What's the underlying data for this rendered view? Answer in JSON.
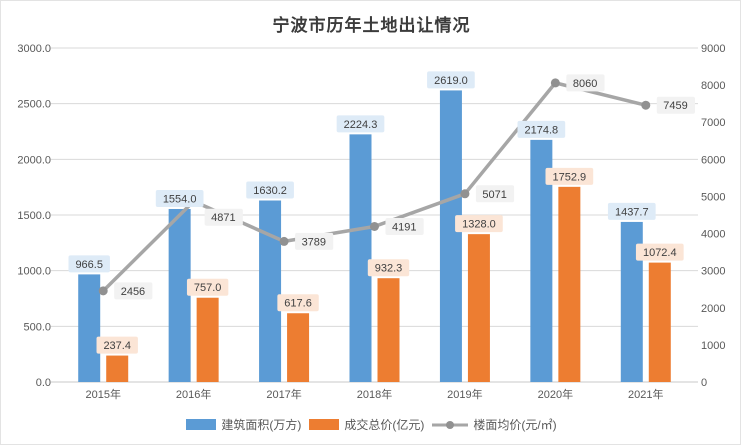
{
  "title": "宁波市历年土地出让情况",
  "colors": {
    "bar_blue": "#5B9BD5",
    "bar_orange": "#ED7D31",
    "line_gray": "#A6A6A6",
    "marker_gray": "#919191",
    "gridline": "#DADADA",
    "axis_line": "#C9C9C9",
    "tick_text": "#595959",
    "label_text": "#404040",
    "label_bg_blue": "#DEEBF7",
    "label_bg_orange": "#FBE5D6",
    "label_bg_gray": "#F2F2F2"
  },
  "chart_data": {
    "type": "bar",
    "subtype": "combo-bar-line-dual-axis",
    "title": "宁波市历年土地出让情况",
    "categories": [
      "2015年",
      "2016年",
      "2017年",
      "2018年",
      "2019年",
      "2020年",
      "2021年"
    ],
    "series": [
      {
        "id": "building-area",
        "name": "建筑面积(万方)",
        "type": "bar",
        "axis": "left",
        "color": "#5B9BD5",
        "label_bg": "#DEEBF7",
        "label_format": "fixed1",
        "values": [
          966.5,
          1554.0,
          1630.2,
          2224.3,
          2619.0,
          2174.8,
          1437.7
        ]
      },
      {
        "id": "transaction-total",
        "name": "成交总价(亿元)",
        "type": "bar",
        "axis": "left",
        "color": "#ED7D31",
        "label_bg": "#FBE5D6",
        "label_format": "fixed1",
        "values": [
          237.4,
          757.0,
          617.6,
          932.3,
          1328.0,
          1752.9,
          1072.4
        ]
      },
      {
        "id": "floor-avg-price",
        "name": "楼面均价(元/㎡)",
        "type": "line",
        "axis": "right",
        "color": "#A6A6A6",
        "label_bg": "#F2F2F2",
        "label_format": "int",
        "values": [
          2456,
          4871,
          3789,
          4191,
          5071,
          8060,
          7459
        ]
      }
    ],
    "left_axis": {
      "min": 0,
      "max": 3000,
      "step": 500,
      "ticks": [
        "0.0",
        "500.0",
        "1000.0",
        "1500.0",
        "2000.0",
        "2500.0",
        "3000.0"
      ]
    },
    "right_axis": {
      "min": 0,
      "max": 9000,
      "step": 1000,
      "ticks": [
        "0",
        "1000",
        "2000",
        "3000",
        "4000",
        "5000",
        "6000",
        "7000",
        "8000",
        "9000"
      ]
    },
    "grid": true,
    "legend_position": "bottom"
  }
}
